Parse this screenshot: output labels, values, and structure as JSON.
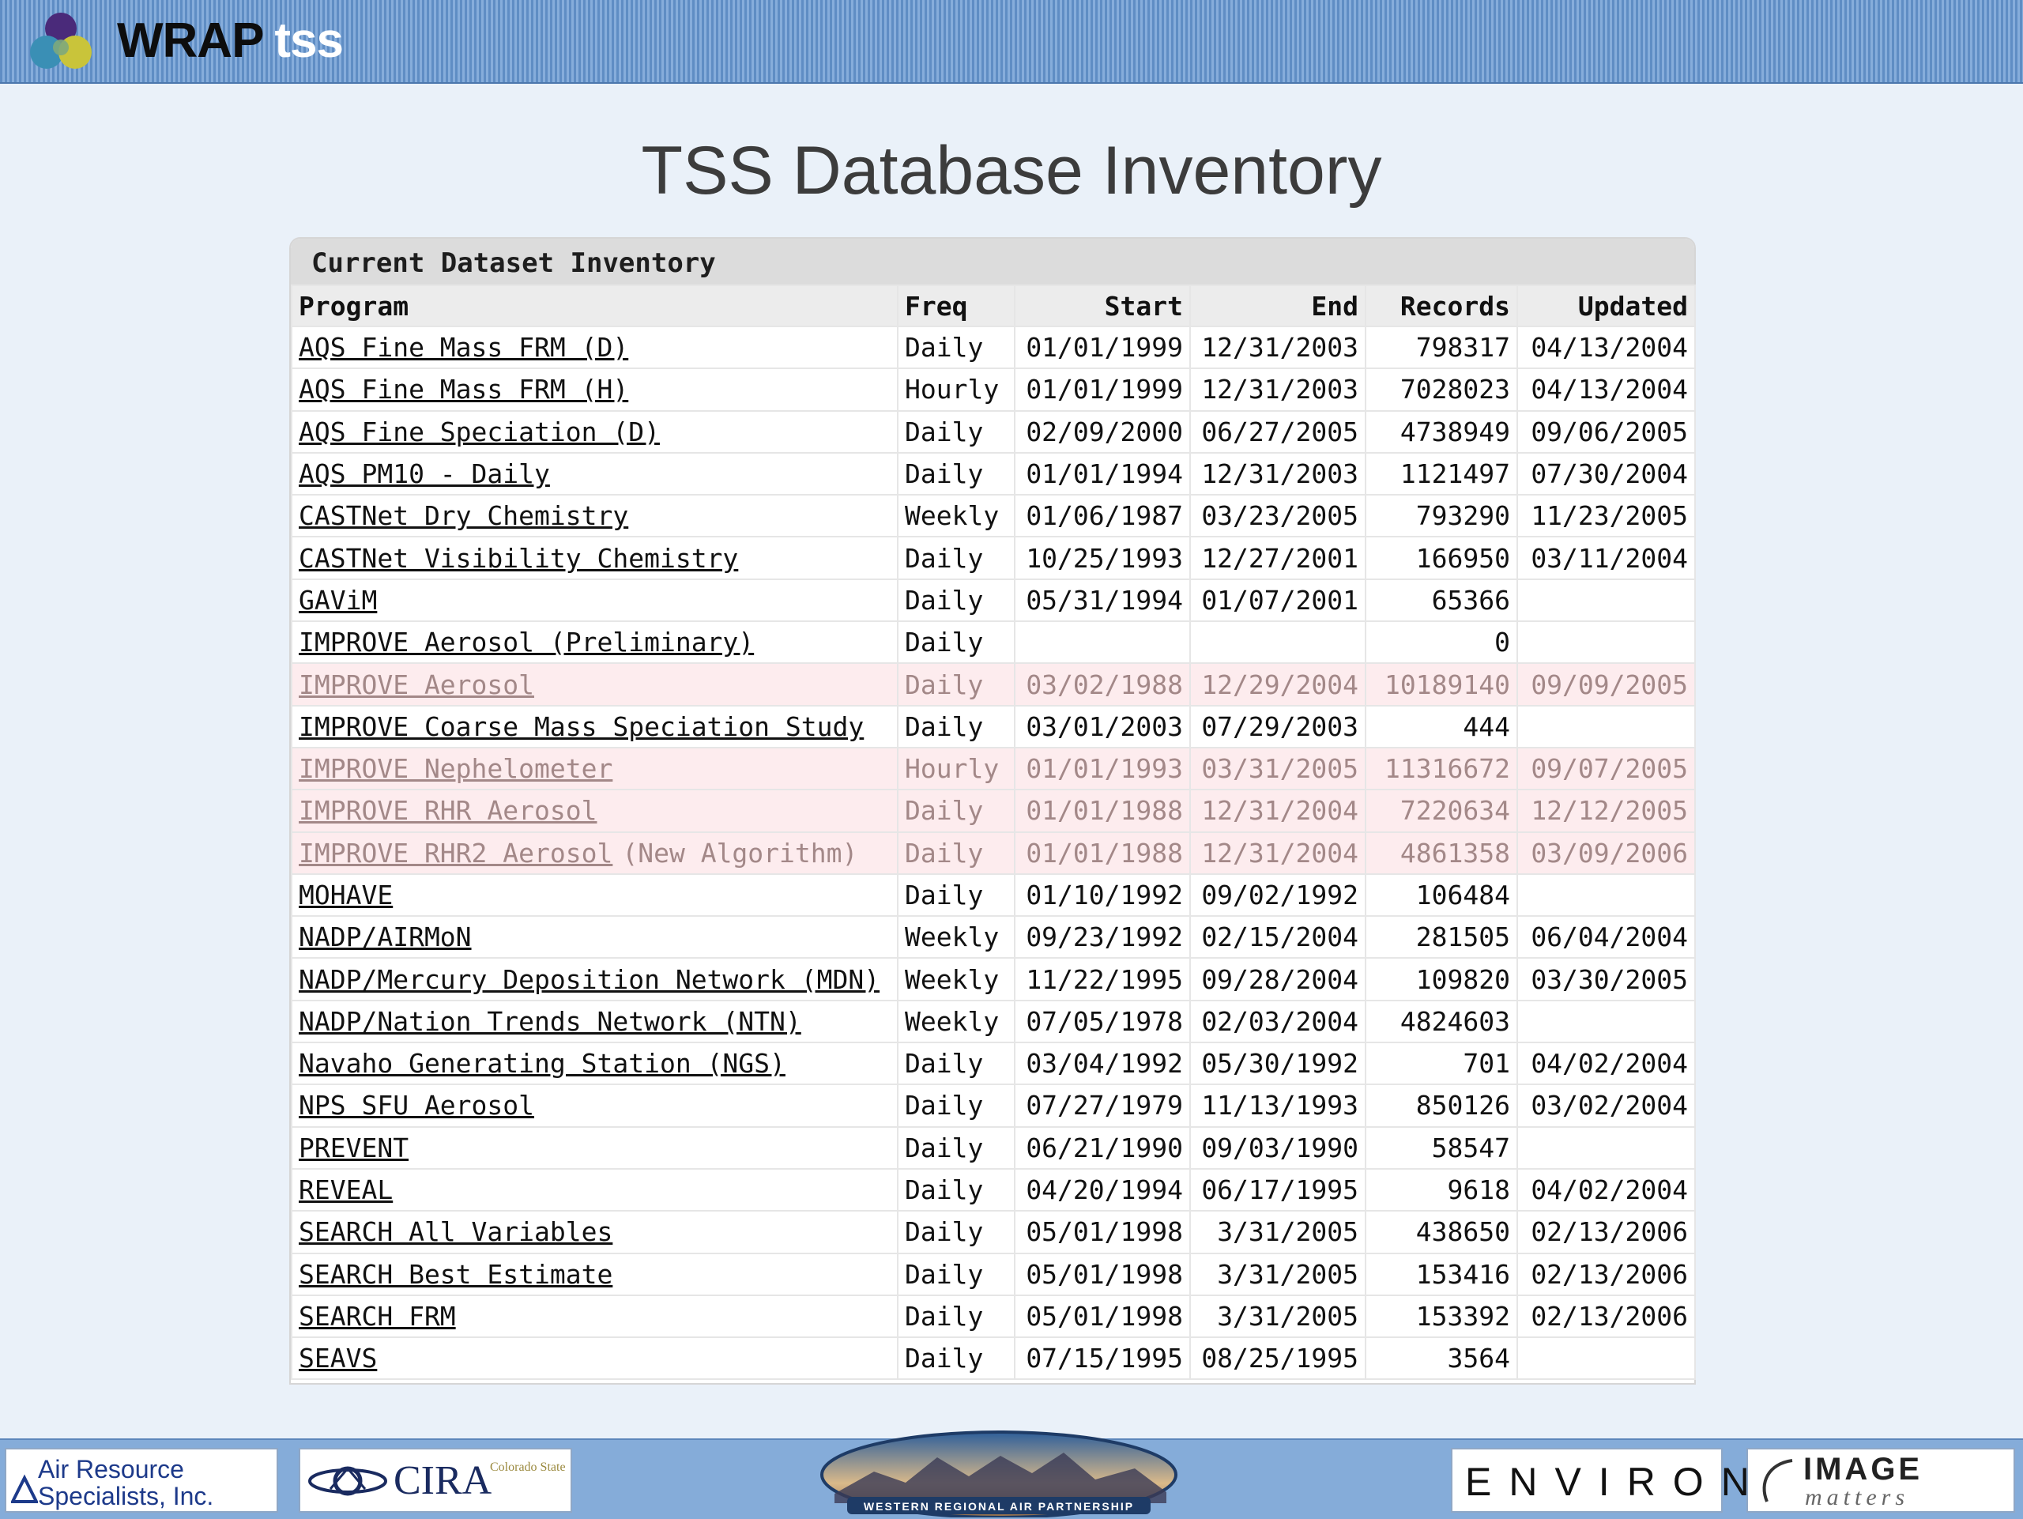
{
  "header": {
    "brand_main": "WRAP",
    "brand_sub": "tss"
  },
  "page_title": "TSS Database Inventory",
  "inventory": {
    "caption": "Current Dataset Inventory",
    "columns": [
      "Program",
      "Freq",
      "Start",
      "End",
      "Records",
      "Updated"
    ],
    "rows": [
      {
        "program": "AQS Fine Mass FRM (D)",
        "note": "",
        "freq": "Daily",
        "start": "01/01/1999",
        "end": "12/31/2003",
        "records": "798317",
        "updated": "04/13/2004",
        "highlight": false
      },
      {
        "program": "AQS Fine Mass FRM (H)",
        "note": "",
        "freq": "Hourly",
        "start": "01/01/1999",
        "end": "12/31/2003",
        "records": "7028023",
        "updated": "04/13/2004",
        "highlight": false
      },
      {
        "program": "AQS Fine Speciation (D)",
        "note": "",
        "freq": "Daily",
        "start": "02/09/2000",
        "end": "06/27/2005",
        "records": "4738949",
        "updated": "09/06/2005",
        "highlight": false
      },
      {
        "program": "AQS PM10 - Daily",
        "note": "",
        "freq": "Daily",
        "start": "01/01/1994",
        "end": "12/31/2003",
        "records": "1121497",
        "updated": "07/30/2004",
        "highlight": false
      },
      {
        "program": "CASTNet Dry Chemistry",
        "note": "",
        "freq": "Weekly",
        "start": "01/06/1987",
        "end": "03/23/2005",
        "records": "793290",
        "updated": "11/23/2005",
        "highlight": false
      },
      {
        "program": "CASTNet Visibility Chemistry",
        "note": "",
        "freq": "Daily",
        "start": "10/25/1993",
        "end": "12/27/2001",
        "records": "166950",
        "updated": "03/11/2004",
        "highlight": false
      },
      {
        "program": "GAViM",
        "note": "",
        "freq": "Daily",
        "start": "05/31/1994",
        "end": "01/07/2001",
        "records": "65366",
        "updated": "",
        "highlight": false
      },
      {
        "program": "IMPROVE Aerosol (Preliminary)",
        "note": "",
        "freq": "Daily",
        "start": "",
        "end": "",
        "records": "0",
        "updated": "",
        "highlight": false
      },
      {
        "program": "IMPROVE Aerosol",
        "note": "",
        "freq": "Daily",
        "start": "03/02/1988",
        "end": "12/29/2004",
        "records": "10189140",
        "updated": "09/09/2005",
        "highlight": true
      },
      {
        "program": "IMPROVE Coarse Mass Speciation Study",
        "note": "",
        "freq": "Daily",
        "start": "03/01/2003",
        "end": "07/29/2003",
        "records": "444",
        "updated": "",
        "highlight": false
      },
      {
        "program": "IMPROVE Nephelometer",
        "note": "",
        "freq": "Hourly",
        "start": "01/01/1993",
        "end": "03/31/2005",
        "records": "11316672",
        "updated": "09/07/2005",
        "highlight": true
      },
      {
        "program": "IMPROVE RHR Aerosol",
        "note": "",
        "freq": "Daily",
        "start": "01/01/1988",
        "end": "12/31/2004",
        "records": "7220634",
        "updated": "12/12/2005",
        "highlight": true
      },
      {
        "program": "IMPROVE RHR2 Aerosol",
        "note": "(New Algorithm)",
        "freq": "Daily",
        "start": "01/01/1988",
        "end": "12/31/2004",
        "records": "4861358",
        "updated": "03/09/2006",
        "highlight": true
      },
      {
        "program": "MOHAVE",
        "note": "",
        "freq": "Daily",
        "start": "01/10/1992",
        "end": "09/02/1992",
        "records": "106484",
        "updated": "",
        "highlight": false
      },
      {
        "program": "NADP/AIRMoN",
        "note": "",
        "freq": "Weekly",
        "start": "09/23/1992",
        "end": "02/15/2004",
        "records": "281505",
        "updated": "06/04/2004",
        "highlight": false
      },
      {
        "program": "NADP/Mercury Deposition Network (MDN)",
        "note": "",
        "freq": "Weekly",
        "start": "11/22/1995",
        "end": "09/28/2004",
        "records": "109820",
        "updated": "03/30/2005",
        "highlight": false
      },
      {
        "program": "NADP/Nation Trends Network (NTN)",
        "note": "",
        "freq": "Weekly",
        "start": "07/05/1978",
        "end": "02/03/2004",
        "records": "4824603",
        "updated": "",
        "highlight": false
      },
      {
        "program": "Navaho Generating Station (NGS)",
        "note": "",
        "freq": "Daily",
        "start": "03/04/1992",
        "end": "05/30/1992",
        "records": "701",
        "updated": "04/02/2004",
        "highlight": false
      },
      {
        "program": "NPS SFU Aerosol",
        "note": "",
        "freq": "Daily",
        "start": "07/27/1979",
        "end": "11/13/1993",
        "records": "850126",
        "updated": "03/02/2004",
        "highlight": false
      },
      {
        "program": "PREVENT",
        "note": "",
        "freq": "Daily",
        "start": "06/21/1990",
        "end": "09/03/1990",
        "records": "58547",
        "updated": "",
        "highlight": false
      },
      {
        "program": "REVEAL",
        "note": "",
        "freq": "Daily",
        "start": "04/20/1994",
        "end": "06/17/1995",
        "records": "9618",
        "updated": "04/02/2004",
        "highlight": false
      },
      {
        "program": "SEARCH All Variables",
        "note": "",
        "freq": "Daily",
        "start": "05/01/1998",
        "end": "3/31/2005",
        "records": "438650",
        "updated": "02/13/2006",
        "highlight": false
      },
      {
        "program": "SEARCH Best Estimate",
        "note": "",
        "freq": "Daily",
        "start": "05/01/1998",
        "end": "3/31/2005",
        "records": "153416",
        "updated": "02/13/2006",
        "highlight": false
      },
      {
        "program": "SEARCH FRM",
        "note": "",
        "freq": "Daily",
        "start": "05/01/1998",
        "end": "3/31/2005",
        "records": "153392",
        "updated": "02/13/2006",
        "highlight": false
      },
      {
        "program": "SEAVS",
        "note": "",
        "freq": "Daily",
        "start": "07/15/1995",
        "end": "08/25/1995",
        "records": "3564",
        "updated": "",
        "highlight": false
      }
    ]
  },
  "footer": {
    "ars_line1": "Air Resource",
    "ars_line2": "Specialists, Inc.",
    "cira": "CIRA",
    "cira_sub": "Colorado State",
    "wrap_banner": "WESTERN REGIONAL AIR PARTNERSHIP",
    "environ": "ENVIRON",
    "image_matters_1": "IMAGE",
    "image_matters_2": "matters"
  },
  "colors": {
    "header_stripe": "#5f8dc4",
    "page_bg": "#eaf1f9",
    "highlight_row_bg": "#fdecee",
    "highlight_row_text": "#a38888"
  }
}
